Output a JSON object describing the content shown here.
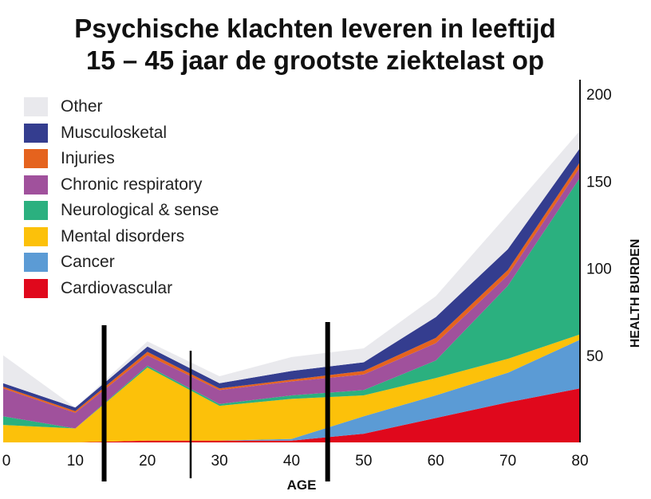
{
  "title_line1": "Psychische klachten leveren in leeftijd",
  "title_line2": "15 – 45 jaar de grootste ziektelast op",
  "chart_data": {
    "type": "area",
    "stacked": true,
    "title": "Psychische klachten leveren in leeftijd 15 – 45 jaar de grootste ziektelast op",
    "xlabel": "AGE",
    "ylabel": "HEALTH BURDEN",
    "x": [
      0,
      10,
      20,
      30,
      40,
      50,
      60,
      70,
      80
    ],
    "xlim": [
      0,
      80
    ],
    "ylim": [
      0,
      200
    ],
    "xticks": [
      "0",
      "10",
      "20",
      "30",
      "40",
      "50",
      "60",
      "70",
      "80"
    ],
    "yticks": [
      "50",
      "100",
      "150",
      "200"
    ],
    "y_axis_side": "right",
    "legend_position": "top-left",
    "series": [
      {
        "name": "Cardiovascular",
        "color": "#e0081c",
        "values": [
          0,
          0,
          1,
          1,
          1,
          5,
          14,
          23,
          31
        ]
      },
      {
        "name": "Cancer",
        "color": "#5b9bd5",
        "values": [
          0,
          0,
          0,
          0,
          1,
          10,
          13,
          17,
          28
        ]
      },
      {
        "name": "Mental disorders",
        "color": "#fcc10a",
        "values": [
          10,
          8,
          42,
          20,
          23,
          12,
          10,
          8,
          3
        ]
      },
      {
        "name": "Neurological & sense",
        "color": "#2bb07f",
        "values": [
          5,
          0,
          1,
          1,
          2,
          3,
          10,
          42,
          90
        ]
      },
      {
        "name": "Chronic respiratory",
        "color": "#a0519c",
        "values": [
          16,
          9,
          6,
          8,
          8,
          9,
          10,
          6,
          6
        ]
      },
      {
        "name": "Injuries",
        "color": "#e5631e",
        "values": [
          1,
          1,
          2,
          1,
          1,
          2,
          3,
          3,
          3
        ]
      },
      {
        "name": "Musculosketal",
        "color": "#343d8f",
        "values": [
          2,
          2,
          3,
          3,
          5,
          5,
          12,
          12,
          8
        ]
      },
      {
        "name": "Other",
        "color": "#e9e9ed",
        "values": [
          16,
          0,
          3,
          4,
          8,
          8,
          12,
          20,
          10
        ]
      }
    ],
    "legend_order": [
      "Other",
      "Musculosketal",
      "Injuries",
      "Chronic respiratory",
      "Neurological & sense",
      "Mental disorders",
      "Cancer",
      "Cardiovascular"
    ],
    "annotations": {
      "vertical_marker_ages": [
        14,
        26,
        45
      ]
    }
  }
}
